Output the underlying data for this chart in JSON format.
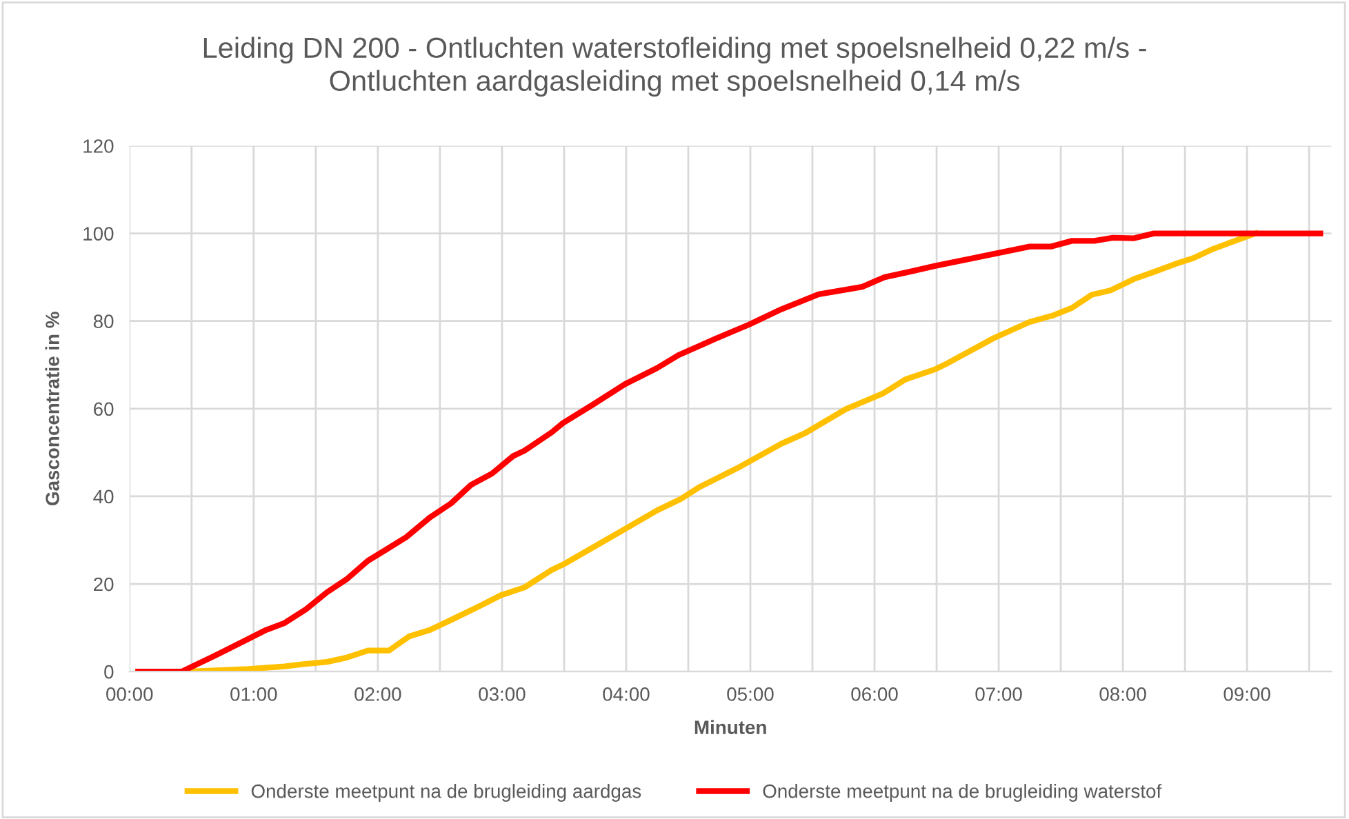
{
  "chart_data": {
    "type": "line",
    "title": "Leiding DN 200 - Ontluchten waterstofleiding met spoelsnelheid 0,22 m/s -\nOntluchten aardgasleiding met spoelsnelheid 0,14 m/s",
    "xlabel": "Minuten",
    "ylabel": "Gasconcentratie in %",
    "series": [
      {
        "name": "Onderste meetpunt na de brugleiding aardgas",
        "color": "#ffc000",
        "x": [
          0.07,
          0.47,
          0.96,
          1.25,
          1.4,
          1.59,
          1.75,
          1.92,
          2.09,
          2.25,
          2.42,
          2.62,
          2.81,
          2.99,
          3.18,
          3.4,
          3.51,
          3.92,
          4.25,
          4.44,
          4.59,
          4.92,
          5.25,
          5.44,
          5.77,
          6.07,
          6.25,
          6.49,
          6.59,
          6.96,
          7.25,
          7.44,
          7.59,
          7.75,
          7.9,
          8.09,
          8.25,
          8.42,
          8.57,
          8.73,
          8.99,
          9.07
        ],
        "values": [
          0,
          0,
          0.6,
          1.2,
          1.7,
          2.2,
          3.2,
          4.8,
          4.8,
          8.0,
          9.5,
          12.2,
          14.8,
          17.4,
          19.2,
          23.2,
          24.7,
          31.4,
          36.8,
          39.4,
          42.1,
          46.8,
          52.0,
          54.4,
          59.9,
          63.5,
          66.7,
          69.0,
          70.4,
          76.1,
          79.8,
          81.3,
          83.0,
          86.0,
          87.0,
          89.6,
          91.2,
          93.0,
          94.4,
          96.5,
          99.2,
          100
        ]
      },
      {
        "name": "Onderste meetpunt na de brugleiding waterstof",
        "color": "#ff0000",
        "x": [
          0.07,
          0.42,
          0.7,
          0.96,
          1.1,
          1.25,
          1.42,
          1.59,
          1.75,
          1.92,
          2.07,
          2.23,
          2.42,
          2.59,
          2.75,
          2.92,
          3.09,
          3.18,
          3.4,
          3.49,
          3.73,
          3.99,
          4.25,
          4.42,
          4.73,
          4.99,
          5.25,
          5.55,
          5.9,
          6.08,
          6.29,
          6.49,
          6.77,
          7.25,
          7.42,
          7.59,
          7.77,
          7.92,
          8.09,
          8.25,
          9.59
        ],
        "values": [
          0,
          0,
          3.8,
          7.5,
          9.5,
          11.1,
          14.2,
          18.1,
          21.1,
          25.3,
          27.9,
          30.7,
          35.2,
          38.4,
          42.6,
          45.2,
          49.2,
          50.4,
          54.6,
          56.7,
          60.9,
          65.6,
          69.3,
          72.2,
          76.1,
          79.2,
          82.7,
          86.1,
          87.8,
          90.0,
          91.3,
          92.6,
          94.2,
          97.0,
          97.0,
          98.3,
          98.3,
          99.0,
          98.9,
          100,
          100
        ]
      }
    ],
    "xlim": [
      0,
      9.68
    ],
    "xticks": [
      {
        "value": 0,
        "label": "00:00"
      },
      {
        "value": 0.5,
        "label": null
      },
      {
        "value": 1,
        "label": "01:00"
      },
      {
        "value": 1.5,
        "label": null
      },
      {
        "value": 2,
        "label": "02:00"
      },
      {
        "value": 2.5,
        "label": null
      },
      {
        "value": 3,
        "label": "03:00"
      },
      {
        "value": 3.5,
        "label": null
      },
      {
        "value": 4,
        "label": "04:00"
      },
      {
        "value": 4.5,
        "label": null
      },
      {
        "value": 5,
        "label": "05:00"
      },
      {
        "value": 5.5,
        "label": null
      },
      {
        "value": 6,
        "label": "06:00"
      },
      {
        "value": 6.5,
        "label": null
      },
      {
        "value": 7,
        "label": "07:00"
      },
      {
        "value": 7.5,
        "label": null
      },
      {
        "value": 8,
        "label": "08:00"
      },
      {
        "value": 8.5,
        "label": null
      },
      {
        "value": 9,
        "label": "09:00"
      },
      {
        "value": 9.5,
        "label": null
      }
    ],
    "ylim": [
      0,
      120
    ],
    "yticks": [
      0,
      20,
      40,
      60,
      80,
      100,
      120
    ],
    "grid": true,
    "legend": "bottom",
    "marker": "none",
    "line_style": "solid"
  }
}
